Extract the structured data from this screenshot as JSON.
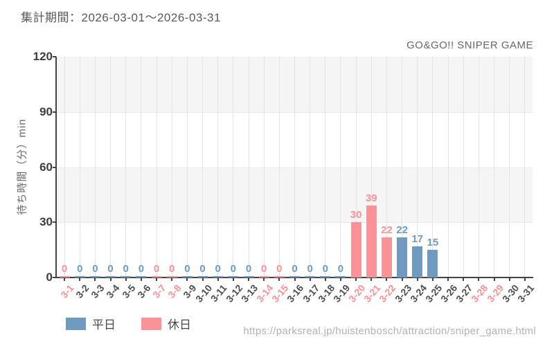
{
  "header": {
    "period_label": "集計期間：2026-03-01〜2026-03-31"
  },
  "footer": {
    "url": "https://parksreal.jp/huistenbosch/attraction/sniper_game.html"
  },
  "colors": {
    "weekday": "#6f9bc2",
    "holiday": "#fb9297",
    "xlabel_weekday": "#4d4d4d",
    "xlabel_holiday": "#fa9196",
    "axis": "#424242",
    "band_gray": "#f5f5f5",
    "band_white": "#ffffff"
  },
  "legend": {
    "items": [
      {
        "label": "平日",
        "series": "weekday",
        "color": "#6f9bc2"
      },
      {
        "label": "休日",
        "series": "holiday",
        "color": "#fb9297"
      }
    ]
  },
  "chart_data": {
    "type": "bar",
    "title": "GO&GO!! SNIPER GAME",
    "xlabel": "",
    "ylabel": "待ち時間（分）min",
    "ylim": [
      0,
      120
    ],
    "yticks": [
      0,
      30,
      60,
      90,
      120
    ],
    "grid": true,
    "legend_position": "bottom-left",
    "series_colors": {
      "平日": "#6f9bc2",
      "休日": "#fb9297"
    },
    "categories": [
      "3-1",
      "3-2",
      "3-3",
      "3-4",
      "3-5",
      "3-6",
      "3-7",
      "3-8",
      "3-9",
      "3-10",
      "3-11",
      "3-12",
      "3-13",
      "3-14",
      "3-15",
      "3-16",
      "3-17",
      "3-18",
      "3-19",
      "3-20",
      "3-21",
      "3-22",
      "3-23",
      "3-24",
      "3-25",
      "3-26",
      "3-27",
      "3-28",
      "3-29",
      "3-30",
      "3-31"
    ],
    "points": [
      {
        "category": "3-1",
        "value": 0,
        "day": "holiday"
      },
      {
        "category": "3-2",
        "value": 0,
        "day": "weekday"
      },
      {
        "category": "3-3",
        "value": 0,
        "day": "weekday"
      },
      {
        "category": "3-4",
        "value": 0,
        "day": "weekday"
      },
      {
        "category": "3-5",
        "value": 0,
        "day": "weekday"
      },
      {
        "category": "3-6",
        "value": 0,
        "day": "weekday"
      },
      {
        "category": "3-7",
        "value": 0,
        "day": "holiday"
      },
      {
        "category": "3-8",
        "value": 0,
        "day": "holiday"
      },
      {
        "category": "3-9",
        "value": 0,
        "day": "weekday"
      },
      {
        "category": "3-10",
        "value": 0,
        "day": "weekday"
      },
      {
        "category": "3-11",
        "value": 0,
        "day": "weekday"
      },
      {
        "category": "3-12",
        "value": 0,
        "day": "weekday"
      },
      {
        "category": "3-13",
        "value": 0,
        "day": "weekday"
      },
      {
        "category": "3-14",
        "value": 0,
        "day": "holiday"
      },
      {
        "category": "3-15",
        "value": 0,
        "day": "holiday"
      },
      {
        "category": "3-16",
        "value": 0,
        "day": "weekday"
      },
      {
        "category": "3-17",
        "value": 0,
        "day": "weekday"
      },
      {
        "category": "3-18",
        "value": 0,
        "day": "weekday"
      },
      {
        "category": "3-19",
        "value": 0,
        "day": "weekday"
      },
      {
        "category": "3-20",
        "value": 30,
        "day": "holiday"
      },
      {
        "category": "3-21",
        "value": 39,
        "day": "holiday"
      },
      {
        "category": "3-22",
        "value": 22,
        "day": "holiday"
      },
      {
        "category": "3-23",
        "value": 22,
        "day": "weekday"
      },
      {
        "category": "3-24",
        "value": 17,
        "day": "weekday"
      },
      {
        "category": "3-25",
        "value": 15,
        "day": "weekday"
      },
      {
        "category": "3-26",
        "value": null,
        "day": "weekday"
      },
      {
        "category": "3-27",
        "value": null,
        "day": "weekday"
      },
      {
        "category": "3-28",
        "value": null,
        "day": "holiday"
      },
      {
        "category": "3-29",
        "value": null,
        "day": "holiday"
      },
      {
        "category": "3-30",
        "value": null,
        "day": "weekday"
      },
      {
        "category": "3-31",
        "value": null,
        "day": "weekday"
      }
    ]
  }
}
